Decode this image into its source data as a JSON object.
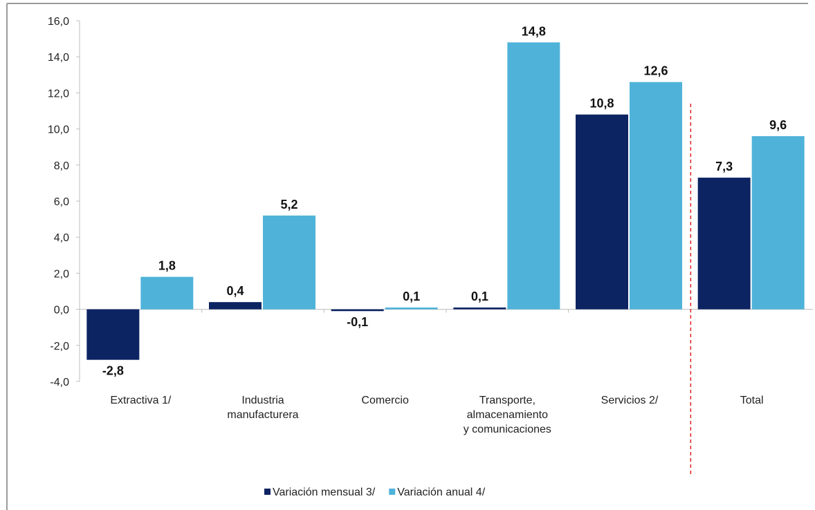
{
  "chart_data": {
    "type": "bar",
    "categories": [
      [
        "Extractiva 1/"
      ],
      [
        "Industria",
        "manufacturera"
      ],
      [
        "Comercio"
      ],
      [
        "Transporte,",
        "almacenamiento",
        "y comunicaciones"
      ],
      [
        "Servicios 2/"
      ],
      [
        "Total"
      ]
    ],
    "series": [
      {
        "name": "Variación mensual 3/",
        "color": "#0d2463",
        "values": [
          -2.8,
          0.4,
          -0.1,
          0.1,
          10.8,
          7.3
        ],
        "labels": [
          "-2,8",
          "0,4",
          "-0,1",
          "0,1",
          "10,8",
          "7,3"
        ]
      },
      {
        "name": "Variación anual 4/",
        "color": "#4fb3d9",
        "values": [
          1.8,
          5.2,
          0.1,
          14.8,
          12.6,
          9.6
        ],
        "labels": [
          "1,8",
          "5,2",
          "0,1",
          "14,8",
          "12,6",
          "9,6"
        ]
      }
    ],
    "ylim": [
      -4,
      16
    ],
    "yticks": [
      {
        "value": 16,
        "label": "16,0"
      },
      {
        "value": 14,
        "label": "14,0"
      },
      {
        "value": 12,
        "label": "12,0"
      },
      {
        "value": 10,
        "label": "10,0"
      },
      {
        "value": 8,
        "label": "8,0"
      },
      {
        "value": 6,
        "label": "6,0"
      },
      {
        "value": 4,
        "label": "4,0"
      },
      {
        "value": 2,
        "label": "2,0"
      },
      {
        "value": 0,
        "label": "0,0"
      },
      {
        "value": -2,
        "label": "-2,0"
      },
      {
        "value": -4,
        "label": "-4,0"
      }
    ],
    "grid": false,
    "legend": "bottom-center",
    "separator": {
      "between": "Servicios 2/ and Total",
      "style": "dashed",
      "color": "#e02020"
    }
  }
}
